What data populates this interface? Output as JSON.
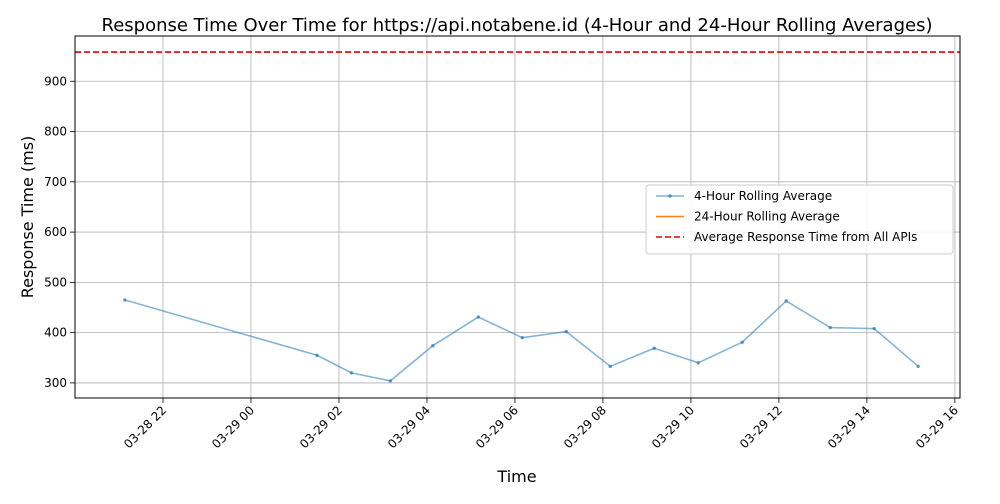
{
  "chart_data": {
    "type": "line",
    "title": "Response Time Over Time for https://api.notabene.id (4-Hour and 24-Hour Rolling Averages)",
    "xlabel": "Time",
    "ylabel": "Response Time (ms)",
    "x_ticks": [
      "03-28 22",
      "03-29 00",
      "03-29 02",
      "03-29 04",
      "03-29 06",
      "03-29 08",
      "03-29 10",
      "03-29 12",
      "03-29 14",
      "03-29 16"
    ],
    "y_ticks": [
      300,
      400,
      500,
      600,
      700,
      800,
      900
    ],
    "xlim": [
      "2024-03-28T20:00",
      "2024-03-29T16:07"
    ],
    "ylim": [
      270,
      990
    ],
    "grid": true,
    "legend_position": "center-right",
    "series": [
      {
        "name": "4-Hour Rolling Average",
        "color": "#1f77b4",
        "style": "line-with-markers",
        "x": [
          "2024-03-28T21:08",
          "2024-03-29T01:30",
          "2024-03-29T02:17",
          "2024-03-29T03:10",
          "2024-03-29T04:08",
          "2024-03-29T05:10",
          "2024-03-29T06:10",
          "2024-03-29T07:10",
          "2024-03-29T08:10",
          "2024-03-29T09:10",
          "2024-03-29T10:10",
          "2024-03-29T11:10",
          "2024-03-29T12:10",
          "2024-03-29T13:10",
          "2024-03-29T14:10",
          "2024-03-29T15:10"
        ],
        "values": [
          465,
          355,
          320,
          304,
          374,
          431,
          390,
          402,
          333,
          369,
          340,
          381,
          463,
          410,
          408,
          333
        ]
      },
      {
        "name": "24-Hour Rolling Average",
        "color": "#ff7f0e",
        "style": "line",
        "x": [],
        "values": []
      },
      {
        "name": "Average Response Time from All APIs",
        "color": "#e00000",
        "style": "dashed-horizontal",
        "value": 958
      }
    ]
  }
}
